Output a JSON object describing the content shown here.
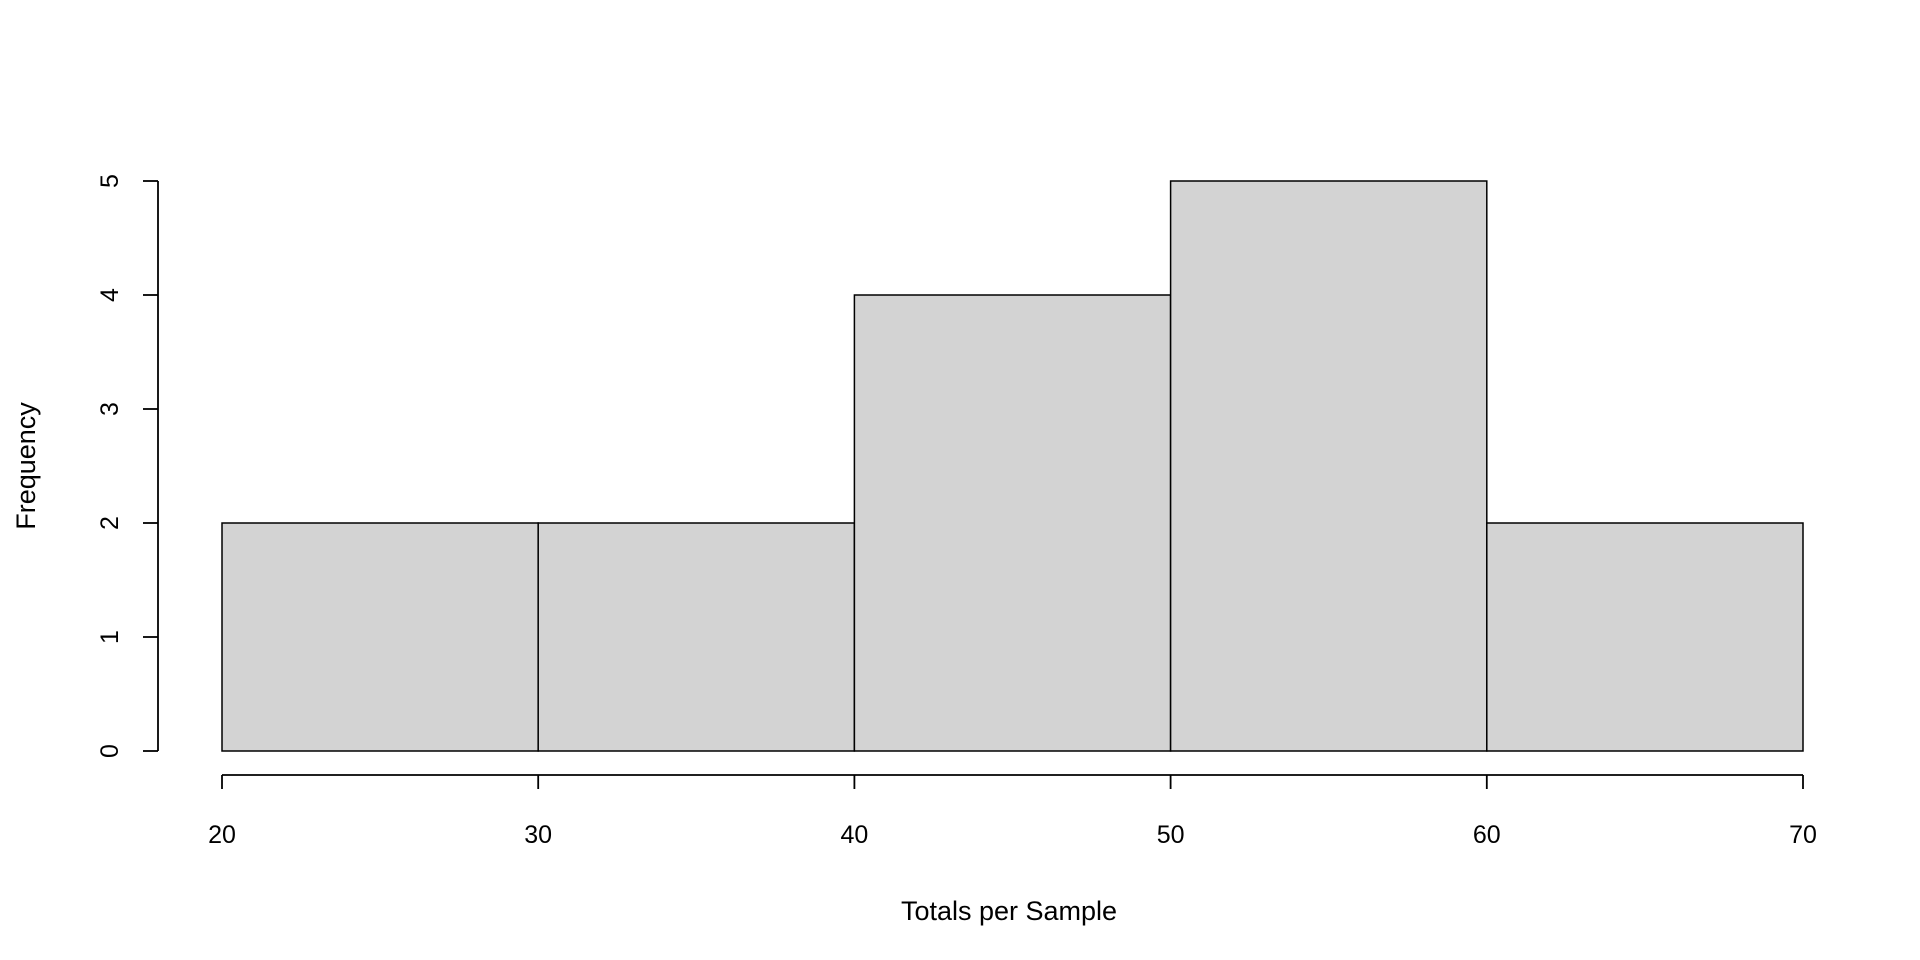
{
  "chart_data": {
    "type": "bar",
    "subtype": "histogram",
    "bins": [
      {
        "start": 20,
        "end": 30,
        "count": 2
      },
      {
        "start": 30,
        "end": 40,
        "count": 2
      },
      {
        "start": 40,
        "end": 50,
        "count": 4
      },
      {
        "start": 50,
        "end": 60,
        "count": 5
      },
      {
        "start": 60,
        "end": 70,
        "count": 2
      }
    ],
    "xlabel": "Totals per Sample",
    "ylabel": "Frequency",
    "xticks": [
      20,
      30,
      40,
      50,
      60,
      70
    ],
    "yticks": [
      0,
      1,
      2,
      3,
      4,
      5
    ],
    "xlim": [
      20,
      70
    ],
    "ylim": [
      0,
      5
    ],
    "grid": false,
    "legend": "none",
    "colors": {
      "bar_fill": "#d3d3d3",
      "bar_stroke": "#000000",
      "axis": "#000000"
    }
  }
}
